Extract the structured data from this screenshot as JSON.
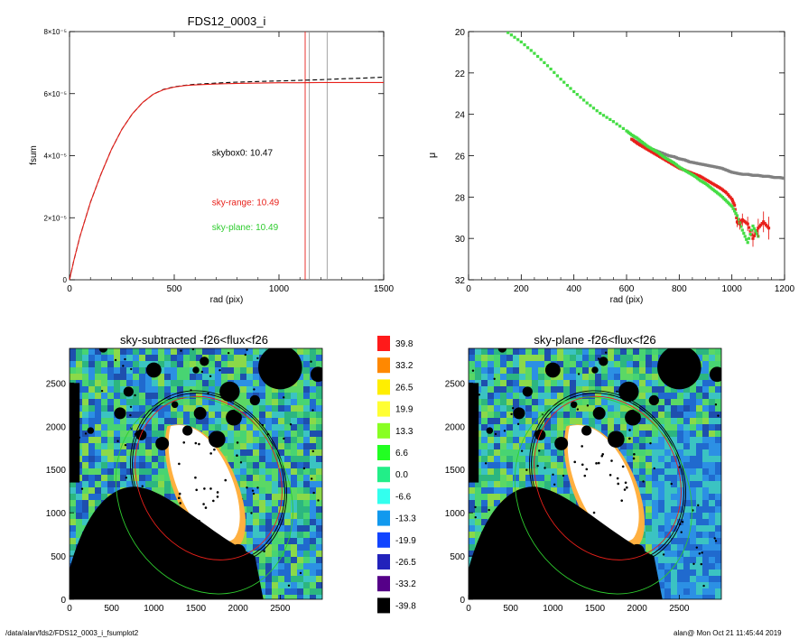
{
  "footer": {
    "path": "/data/alan/fds2/FDS12_0003_i_fsumplot2",
    "stamp": "alan@  Mon Oct 21 11:45:44 2019"
  },
  "chart_data": [
    {
      "type": "line",
      "title": "FDS12_0003_i",
      "xlabel": "rad (pix)",
      "ylabel": "fsum",
      "xlim": [
        0,
        1500
      ],
      "ylim": [
        0,
        8e-05
      ],
      "xticks": [
        "0",
        "500",
        "1000",
        "1500"
      ],
      "yticks": [
        "0",
        "2×10⁻⁵",
        "4×10⁻⁵",
        "6×10⁻⁵",
        "8×10⁻⁵"
      ],
      "ytick_values": [
        0,
        2e-05,
        4e-05,
        6e-05,
        8e-05
      ],
      "series": [
        {
          "color": "#000000",
          "dashed": true,
          "x": [
            0,
            20,
            50,
            100,
            150,
            200,
            250,
            300,
            350,
            400,
            450,
            500,
            550,
            600,
            700,
            800,
            900,
            1000,
            1100,
            1200,
            1300,
            1400,
            1500
          ],
          "y": [
            0,
            6e-06,
            1.4e-05,
            2.5e-05,
            3.4e-05,
            4.2e-05,
            4.85e-05,
            5.35e-05,
            5.72e-05,
            5.98e-05,
            6.14e-05,
            6.22e-05,
            6.27e-05,
            6.3e-05,
            6.34e-05,
            6.37e-05,
            6.39e-05,
            6.41e-05,
            6.43e-05,
            6.45e-05,
            6.48e-05,
            6.5e-05,
            6.53e-05
          ]
        },
        {
          "color": "#e8201a",
          "dashed": false,
          "x": [
            0,
            20,
            50,
            100,
            150,
            200,
            250,
            300,
            350,
            400,
            450,
            500,
            550,
            600,
            700,
            800,
            900,
            1000,
            1100,
            1200,
            1300,
            1400,
            1500
          ],
          "y": [
            0,
            6e-06,
            1.4e-05,
            2.5e-05,
            3.4e-05,
            4.2e-05,
            4.85e-05,
            5.35e-05,
            5.72e-05,
            5.98e-05,
            6.13e-05,
            6.21e-05,
            6.26e-05,
            6.28e-05,
            6.31e-05,
            6.33e-05,
            6.34e-05,
            6.35e-05,
            6.35e-05,
            6.36e-05,
            6.36e-05,
            6.36e-05,
            6.36e-05
          ]
        }
      ],
      "vlines": [
        {
          "x": 1125,
          "color": "#e8201a"
        },
        {
          "x": 1145,
          "color": "#9a9a9a"
        },
        {
          "x": 1230,
          "color": "#9a9a9a"
        }
      ],
      "annotations": [
        {
          "text": "skybox0: 10.47",
          "color": "#000000",
          "x": 680,
          "y": 4e-05
        },
        {
          "text": "sky-range: 10.49",
          "color": "#e8201a",
          "x": 680,
          "y": 2.4e-05
        },
        {
          "text": "sky-plane: 10.49",
          "color": "#2ecc2e",
          "x": 680,
          "y": 1.6e-05
        }
      ]
    },
    {
      "type": "scatter",
      "title": "",
      "xlabel": "rad (pix)",
      "ylabel": "μ",
      "xlim": [
        0,
        1200
      ],
      "ylim": [
        32,
        20
      ],
      "xticks": [
        "0",
        "200",
        "400",
        "600",
        "800",
        "1000",
        "1200"
      ],
      "yticks": [
        "20",
        "22",
        "24",
        "26",
        "28",
        "30",
        "32"
      ],
      "series": [
        {
          "color": "#808080",
          "x": [
            620,
            640,
            660,
            680,
            700,
            720,
            740,
            760,
            780,
            800,
            820,
            840,
            860,
            880,
            900,
            920,
            940,
            960,
            980,
            1000,
            1020,
            1040,
            1060,
            1080,
            1100,
            1120,
            1140,
            1160,
            1180,
            1200
          ],
          "y": [
            25.2,
            25.35,
            25.5,
            25.6,
            25.7,
            25.8,
            25.9,
            26.0,
            26.05,
            26.15,
            26.2,
            26.3,
            26.35,
            26.4,
            26.45,
            26.5,
            26.55,
            26.6,
            26.7,
            26.8,
            26.85,
            26.9,
            26.9,
            26.95,
            26.95,
            27.0,
            27.0,
            27.05,
            27.05,
            27.1
          ]
        },
        {
          "color": "#e8201a",
          "x": [
            620,
            640,
            660,
            680,
            700,
            720,
            740,
            760,
            780,
            800,
            820,
            840,
            860,
            880,
            900,
            920,
            940,
            960,
            980,
            1000,
            1010,
            1020,
            1030,
            1040,
            1060,
            1080,
            1100,
            1120,
            1140
          ],
          "y": [
            25.2,
            25.4,
            25.55,
            25.7,
            25.85,
            26.0,
            26.15,
            26.3,
            26.45,
            26.6,
            26.7,
            26.8,
            26.9,
            27.0,
            27.15,
            27.3,
            27.45,
            27.6,
            27.8,
            28.1,
            28.4,
            29.2,
            29.3,
            29.1,
            29.3,
            30.0,
            29.5,
            29.2,
            29.5
          ]
        },
        {
          "color": "#44dd44",
          "x": [
            150,
            200,
            250,
            300,
            350,
            400,
            450,
            500,
            550,
            600,
            620,
            640,
            660,
            680,
            700,
            720,
            740,
            760,
            780,
            800,
            820,
            840,
            860,
            880,
            900,
            920,
            940,
            960,
            980,
            1000,
            1020,
            1040,
            1060,
            1080,
            1100
          ],
          "y": [
            20.05,
            20.5,
            21.05,
            21.65,
            22.3,
            22.9,
            23.45,
            23.95,
            24.35,
            24.8,
            25.0,
            25.15,
            25.35,
            25.55,
            25.7,
            25.85,
            26.05,
            26.2,
            26.35,
            26.55,
            26.7,
            26.85,
            27.0,
            27.2,
            27.35,
            27.55,
            27.75,
            27.95,
            28.2,
            28.45,
            28.9,
            29.6,
            30.2,
            29.4,
            29.9
          ]
        }
      ]
    },
    {
      "type": "heatmap",
      "title": "sky-subtracted -f26<flux<f26",
      "xlim": [
        0,
        3000
      ],
      "ylim": [
        0,
        2900
      ],
      "xticks": [
        "0",
        "500",
        "1000",
        "1500",
        "2000",
        "2500"
      ],
      "yticks": [
        "0",
        "500",
        "1000",
        "1500",
        "2000",
        "2500"
      ]
    },
    {
      "type": "heatmap",
      "title": "sky-plane -f26<flux<f26",
      "xlim": [
        0,
        3000
      ],
      "ylim": [
        0,
        2900
      ],
      "xticks": [
        "0",
        "500",
        "1000",
        "1500",
        "2000",
        "2500"
      ],
      "yticks": [
        "0",
        "500",
        "1000",
        "1500",
        "2000",
        "2500"
      ]
    }
  ],
  "colorbar": {
    "labels": [
      "39.8",
      "33.2",
      "26.5",
      "19.9",
      "13.3",
      "6.6",
      "0.0",
      "-6.6",
      "-13.3",
      "-19.9",
      "-26.5",
      "-33.2",
      "-39.8"
    ],
    "colors": [
      "#ff1a1a",
      "#ff8800",
      "#ffee00",
      "#ffff33",
      "#88ff22",
      "#22ff22",
      "#22ee88",
      "#33ffee",
      "#1199ee",
      "#1144ff",
      "#2222bb",
      "#550088",
      "#000000"
    ]
  }
}
